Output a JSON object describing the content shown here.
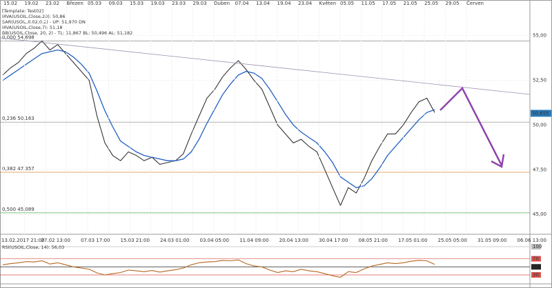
{
  "chart_data": [
    {
      "type": "line",
      "legend": [
        "[Template: Test02]",
        "MVA(USOIL,Close,20): 50,86",
        "SAR(USOIL,0.02,0.2) - UP: 51,970 DN",
        "MVA(USOIL,Close,7): 51,18",
        "BB(USOIL,Close, 20, 2) - TL: 51,867 BL: 50,496 AL: 51,182"
      ],
      "time_axis_top": [
        "15.02",
        "19.02",
        "23.02",
        "Březen",
        "05.03",
        "09.03",
        "15.03",
        "19.03",
        "23.03",
        "29.03",
        "Duben",
        "07.04",
        "13.04",
        "19.04",
        "23.04",
        "Květen",
        "05.05",
        "11.05",
        "17.05",
        "21.05",
        "25.05",
        "29.05",
        "Červen"
      ],
      "time_axis_bottom": [
        "13.02.2017 21:00",
        "27.02 13:00",
        "07.03 17:00",
        "15.03 21:00",
        "24.03 01:00",
        "03.04 05:00",
        "11.04 09:00",
        "20.04 13:00",
        "30.04 17:00",
        "08.05 21:00",
        "17.05 01:00",
        "25.05 05:00",
        "31.05 09:00",
        "06.06 13:00"
      ],
      "ylim": [
        43.89,
        56.53
      ],
      "yticks": [
        {
          "value": 55,
          "label": "55,00"
        },
        {
          "value": 52.5,
          "label": "52,50"
        },
        {
          "value": 50,
          "label": "50,00"
        },
        {
          "value": 47.5,
          "label": "47,50"
        },
        {
          "value": 45,
          "label": "45,00"
        }
      ],
      "fib_levels": [
        {
          "value": 54.698,
          "label": "0,000 54,698",
          "color": "#999999"
        },
        {
          "value": 50.163,
          "label": "0,236 50,163",
          "color": "#999999"
        },
        {
          "value": 47.357,
          "label": "0,382 47,357",
          "color": "#e08a3c"
        },
        {
          "value": 45.089,
          "label": "0,500 45,089",
          "color": "#4caf50"
        }
      ],
      "last_price": {
        "value": 50.655,
        "label": "50,655"
      },
      "series": [
        {
          "name": "USOIL",
          "color": "#333333",
          "values": [
            52.8,
            53.2,
            53.5,
            54.0,
            54.3,
            54.7,
            54.2,
            54.5,
            54.0,
            53.5,
            53.0,
            52.5,
            50.5,
            49.0,
            48.3,
            48.0,
            48.5,
            48.3,
            48.0,
            48.2,
            47.8,
            47.9,
            48.0,
            48.4,
            49.5,
            50.5,
            51.5,
            52.0,
            52.7,
            53.2,
            53.6,
            53.1,
            52.5,
            52.0,
            51.0,
            50.0,
            49.5,
            49.0,
            49.2,
            48.8,
            48.5,
            47.5,
            46.5,
            45.5,
            46.5,
            46.2,
            47.0,
            48.0,
            48.8,
            49.5,
            49.5,
            50.0,
            50.7,
            51.3,
            51.5,
            50.7
          ]
        },
        {
          "name": "MVA(USOIL,Close,20)",
          "color": "#1f5fbf",
          "values": [
            52.5,
            52.8,
            53.1,
            53.4,
            53.7,
            54.0,
            54.1,
            54.2,
            54.1,
            53.8,
            53.4,
            52.9,
            51.9,
            50.8,
            49.9,
            49.1,
            48.8,
            48.5,
            48.3,
            48.2,
            48.1,
            48.0,
            48.0,
            48.1,
            48.5,
            49.2,
            50.1,
            50.9,
            51.7,
            52.3,
            52.8,
            53.0,
            52.9,
            52.6,
            52.0,
            51.3,
            50.6,
            50.0,
            49.6,
            49.3,
            49.0,
            48.5,
            47.9,
            47.1,
            46.8,
            46.5,
            46.6,
            47.0,
            47.6,
            48.3,
            48.8,
            49.3,
            49.8,
            50.3,
            50.7,
            50.86
          ]
        }
      ]
    },
    {
      "type": "line",
      "legend": [
        "RSI(USOIL,Close, 14): 56,03"
      ],
      "ylim": [
        7.8,
        105.1
      ],
      "yticks": [
        100,
        70,
        50,
        30
      ],
      "tick_colors": [
        "#bbbbbb",
        "#d9534f",
        "#222222",
        "#d9534f"
      ],
      "series": [
        {
          "name": "RSI",
          "color": "#b5651d",
          "values": [
            55,
            58,
            60,
            63,
            62,
            65,
            57,
            60,
            55,
            50,
            47,
            44,
            35,
            30,
            33,
            36,
            42,
            40,
            38,
            41,
            37,
            40,
            43,
            47,
            55,
            60,
            62,
            63,
            66,
            65,
            67,
            58,
            52,
            50,
            42,
            36,
            40,
            38,
            44,
            40,
            38,
            33,
            28,
            24,
            38,
            36,
            45,
            52,
            56,
            60,
            58,
            60,
            64,
            66,
            65,
            56
          ]
        }
      ]
    }
  ]
}
